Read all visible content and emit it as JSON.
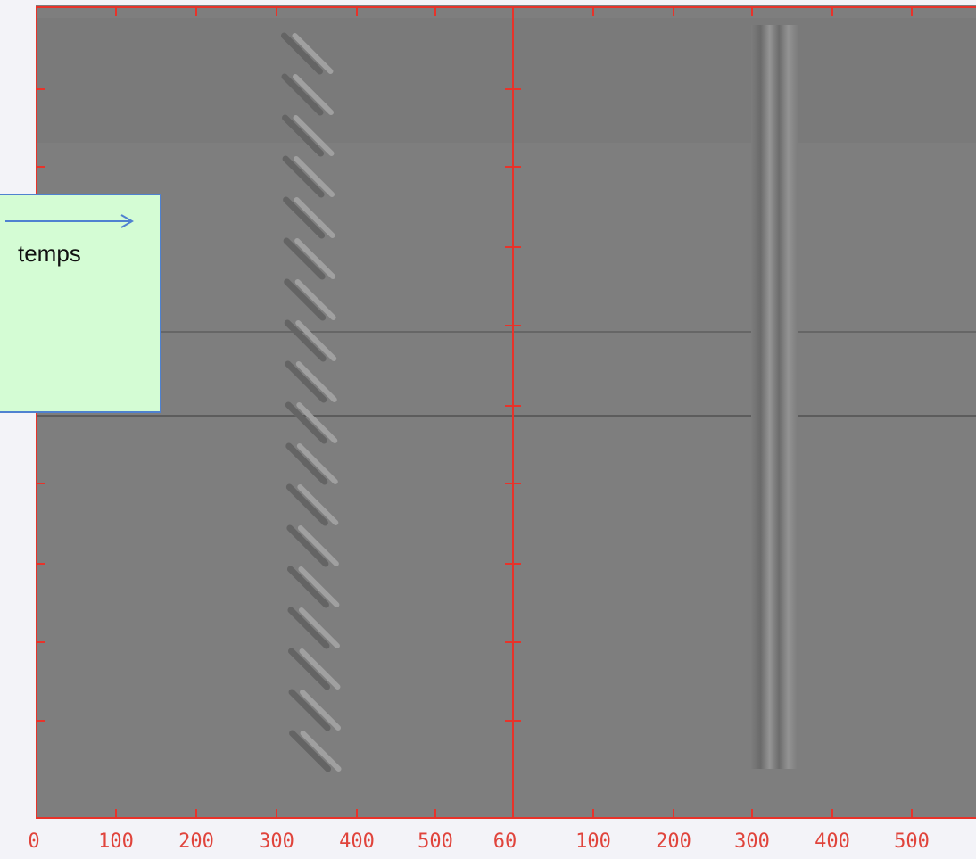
{
  "callout": {
    "label": "temps"
  },
  "axis_labels": [
    "0",
    "100",
    "200",
    "300",
    "400",
    "500",
    "60",
    "100",
    "200",
    "300",
    "400",
    "500"
  ]
}
